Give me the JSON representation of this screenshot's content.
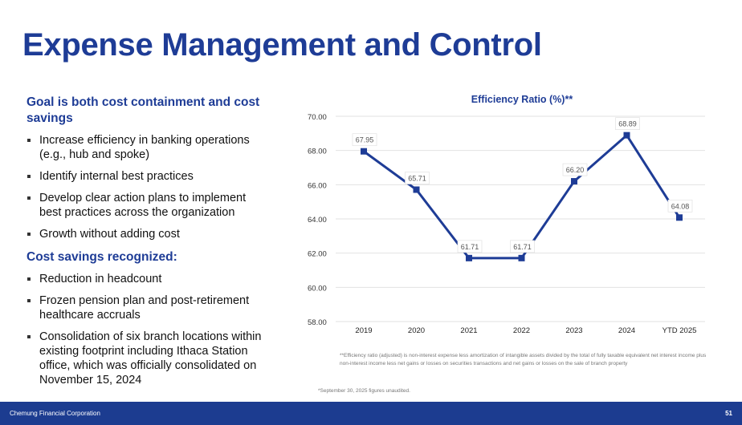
{
  "title": "Expense Management and Control",
  "left": {
    "heading1": "Goal is both cost containment and cost savings",
    "items1": [
      "Increase efficiency in banking operations (e.g., hub and spoke)",
      "Identify internal best practices",
      "Develop clear action plans to implement best practices across the organization",
      "Growth without adding cost"
    ],
    "heading2": "Cost savings recognized:",
    "items2": [
      "Reduction in headcount",
      "Frozen pension plan and post-retirement healthcare accruals",
      "Consolidation of six branch locations within existing footprint including Ithaca Station office, which was officially consolidated on November 15, 2024"
    ]
  },
  "chart_data": {
    "type": "line",
    "title": "Efficiency Ratio (%)**",
    "categories": [
      "2019",
      "2020",
      "2021",
      "2022",
      "2023",
      "2024",
      "YTD 2025"
    ],
    "values": [
      67.95,
      65.71,
      61.71,
      61.71,
      66.2,
      68.89,
      64.08
    ],
    "value_labels": [
      "67.95",
      "65.71",
      "61.71",
      "61.71",
      "66.20",
      "68.89",
      "64.08"
    ],
    "ylim": [
      58,
      70
    ],
    "yticks": [
      "58.00",
      "60.00",
      "62.00",
      "64.00",
      "66.00",
      "68.00",
      "70.00"
    ],
    "grid": true,
    "color": "#1e3c96"
  },
  "notes": {
    "definition": "**Efficiency ratio (adjusted) is non-interest expense less amortization of intangible assets divided by the total of fully taxable equivalent net interest income plus non-interest income less net gains or losses on securities transactions and net gains or losses on the sale of branch property",
    "unaudited": "*September 30, 2025 figures unaudited."
  },
  "footer": {
    "company": "Chemung Financial Corporation",
    "page": "51"
  }
}
